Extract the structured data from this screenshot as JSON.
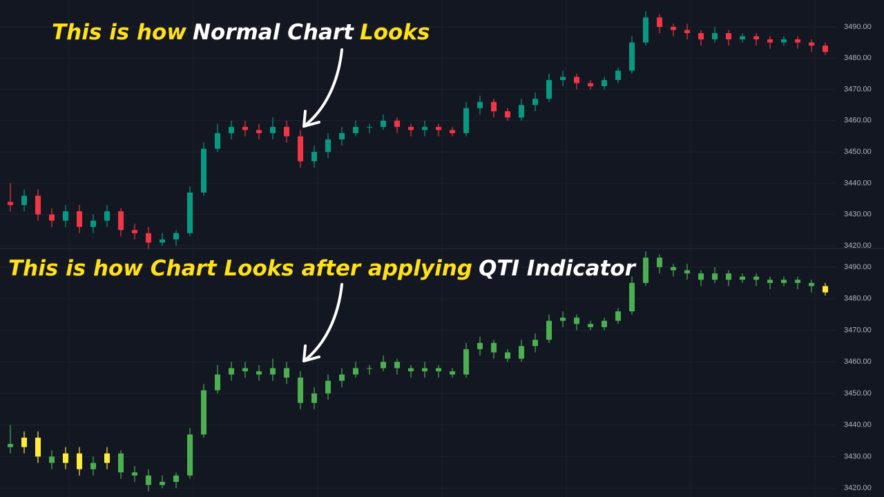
{
  "chart_data": [
    {
      "type": "candlestick",
      "title_parts": [
        {
          "text": "This is how",
          "color": "#ffe01b"
        },
        {
          "text": "Normal Chart",
          "color": "#ffffff"
        },
        {
          "text": "Looks",
          "color": "#ffe01b"
        }
      ],
      "up_color": "#089981",
      "down_color": "#f23645",
      "open": [
        3434,
        3433,
        3436,
        3430,
        3428,
        3431,
        3426,
        3428,
        3431,
        3425,
        3424,
        3421,
        3422,
        3424,
        3437,
        3451,
        3456,
        3458,
        3457,
        3456,
        3458,
        3455,
        3447,
        3450,
        3454,
        3456,
        3458,
        3458,
        3460,
        3458,
        3457,
        3458,
        3457,
        3456,
        3464,
        3466,
        3463,
        3461,
        3465,
        3467,
        3473,
        3474,
        3472,
        3471,
        3473,
        3476,
        3485,
        3493,
        3490,
        3489,
        3488,
        3486,
        3488,
        3486,
        3487,
        3486,
        3485,
        3486,
        3485,
        3484
      ],
      "high": [
        3440,
        3438,
        3438,
        3432,
        3433,
        3433,
        3430,
        3433,
        3432,
        3427,
        3426,
        3424,
        3425,
        3439,
        3453,
        3459,
        3460,
        3460,
        3459,
        3461,
        3460,
        3457,
        3452,
        3456,
        3458,
        3460,
        3459,
        3462,
        3461,
        3459,
        3460,
        3459,
        3458,
        3466,
        3468,
        3467,
        3464,
        3467,
        3469,
        3475,
        3476,
        3475,
        3473,
        3474,
        3477,
        3487,
        3495,
        3494,
        3491,
        3491,
        3489,
        3490,
        3489,
        3488,
        3488,
        3487,
        3487,
        3487,
        3486,
        3485
      ],
      "low": [
        3431,
        3431,
        3428,
        3426,
        3426,
        3424,
        3424,
        3426,
        3423,
        3422,
        3419,
        3420,
        3420,
        3423,
        3436,
        3450,
        3454,
        3455,
        3454,
        3454,
        3453,
        3445,
        3445,
        3448,
        3452,
        3455,
        3456,
        3457,
        3456,
        3455,
        3455,
        3455,
        3455,
        3455,
        3462,
        3461,
        3460,
        3460,
        3463,
        3466,
        3471,
        3470,
        3470,
        3470,
        3472,
        3475,
        3484,
        3488,
        3487,
        3486,
        3484,
        3485,
        3484,
        3485,
        3484,
        3483,
        3484,
        3483,
        3482,
        3481
      ],
      "close": [
        3433,
        3436,
        3430,
        3428,
        3431,
        3426,
        3428,
        3431,
        3425,
        3424,
        3421,
        3422,
        3424,
        3437,
        3451,
        3456,
        3458,
        3457,
        3456,
        3458,
        3455,
        3447,
        3450,
        3454,
        3456,
        3458,
        3458,
        3460,
        3458,
        3457,
        3458,
        3457,
        3456,
        3464,
        3466,
        3463,
        3461,
        3465,
        3467,
        3473,
        3474,
        3472,
        3471,
        3473,
        3476,
        3485,
        3493,
        3490,
        3489,
        3488,
        3486,
        3488,
        3486,
        3487,
        3486,
        3485,
        3486,
        3485,
        3484,
        3482
      ],
      "ylim": [
        3419.1,
        3498.6
      ],
      "yticks": [
        {
          "value": 3420,
          "label": "3420.00"
        },
        {
          "value": 3430,
          "label": "3430.00"
        },
        {
          "value": 3440,
          "label": "3440.00"
        },
        {
          "value": 3450,
          "label": "3450.00"
        },
        {
          "value": 3460,
          "label": "3460.00"
        },
        {
          "value": 3470,
          "label": "3470.00"
        },
        {
          "value": 3480,
          "label": "3480.00"
        },
        {
          "value": 3490,
          "label": "3490.00"
        }
      ],
      "grid": true
    },
    {
      "type": "candlestick",
      "title_parts": [
        {
          "text": "This is how Chart Looks after applying",
          "color": "#ffe01b"
        },
        {
          "text": "QTI Indicator",
          "color": "#ffffff"
        }
      ],
      "colors": [
        "#4caf50",
        "#ffeb3b",
        "#ffeb3b",
        "#4caf50",
        "#ffeb3b",
        "#ffeb3b",
        "#4caf50",
        "#ffeb3b",
        "#4caf50",
        "#4caf50",
        "#4caf50",
        "#4caf50",
        "#4caf50",
        "#4caf50",
        "#4caf50",
        "#4caf50",
        "#4caf50",
        "#4caf50",
        "#4caf50",
        "#4caf50",
        "#4caf50",
        "#4caf50",
        "#4caf50",
        "#4caf50",
        "#4caf50",
        "#4caf50",
        "#4caf50",
        "#4caf50",
        "#4caf50",
        "#4caf50",
        "#4caf50",
        "#4caf50",
        "#4caf50",
        "#4caf50",
        "#4caf50",
        "#4caf50",
        "#4caf50",
        "#4caf50",
        "#4caf50",
        "#4caf50",
        "#4caf50",
        "#4caf50",
        "#4caf50",
        "#4caf50",
        "#4caf50",
        "#4caf50",
        "#4caf50",
        "#4caf50",
        "#4caf50",
        "#4caf50",
        "#4caf50",
        "#4caf50",
        "#4caf50",
        "#4caf50",
        "#4caf50",
        "#4caf50",
        "#4caf50",
        "#4caf50",
        "#4caf50",
        "#ffeb3b"
      ],
      "open": [
        3434,
        3433,
        3436,
        3430,
        3428,
        3431,
        3426,
        3428,
        3431,
        3425,
        3424,
        3421,
        3422,
        3424,
        3437,
        3451,
        3456,
        3458,
        3457,
        3456,
        3458,
        3455,
        3447,
        3450,
        3454,
        3456,
        3458,
        3458,
        3460,
        3458,
        3457,
        3458,
        3457,
        3456,
        3464,
        3466,
        3463,
        3461,
        3465,
        3467,
        3473,
        3474,
        3472,
        3471,
        3473,
        3476,
        3485,
        3493,
        3490,
        3489,
        3488,
        3486,
        3488,
        3486,
        3487,
        3486,
        3485,
        3486,
        3485,
        3484
      ],
      "high": [
        3440,
        3438,
        3438,
        3432,
        3433,
        3433,
        3430,
        3433,
        3432,
        3427,
        3426,
        3424,
        3425,
        3439,
        3453,
        3459,
        3460,
        3460,
        3459,
        3461,
        3460,
        3457,
        3452,
        3456,
        3458,
        3460,
        3459,
        3462,
        3461,
        3459,
        3460,
        3459,
        3458,
        3466,
        3468,
        3467,
        3464,
        3467,
        3469,
        3475,
        3476,
        3475,
        3473,
        3474,
        3477,
        3487,
        3495,
        3494,
        3491,
        3491,
        3489,
        3490,
        3489,
        3488,
        3488,
        3487,
        3487,
        3487,
        3486,
        3485
      ],
      "low": [
        3431,
        3431,
        3428,
        3426,
        3426,
        3424,
        3424,
        3426,
        3423,
        3422,
        3419,
        3420,
        3420,
        3423,
        3436,
        3450,
        3454,
        3455,
        3454,
        3454,
        3453,
        3445,
        3445,
        3448,
        3452,
        3455,
        3456,
        3457,
        3456,
        3455,
        3455,
        3455,
        3455,
        3455,
        3462,
        3461,
        3460,
        3460,
        3463,
        3466,
        3471,
        3470,
        3470,
        3470,
        3472,
        3475,
        3484,
        3488,
        3487,
        3486,
        3484,
        3485,
        3484,
        3485,
        3484,
        3483,
        3484,
        3483,
        3482,
        3481
      ],
      "close": [
        3433,
        3436,
        3430,
        3428,
        3431,
        3426,
        3428,
        3431,
        3425,
        3424,
        3421,
        3422,
        3424,
        3437,
        3451,
        3456,
        3458,
        3457,
        3456,
        3458,
        3455,
        3447,
        3450,
        3454,
        3456,
        3458,
        3458,
        3460,
        3458,
        3457,
        3458,
        3457,
        3456,
        3464,
        3466,
        3463,
        3461,
        3465,
        3467,
        3473,
        3474,
        3472,
        3471,
        3473,
        3476,
        3485,
        3493,
        3490,
        3489,
        3488,
        3486,
        3488,
        3486,
        3487,
        3486,
        3485,
        3486,
        3485,
        3484,
        3482
      ],
      "ylim": [
        3417.2,
        3495.9
      ],
      "yticks": [
        {
          "value": 3420,
          "label": "3420.00"
        },
        {
          "value": 3430,
          "label": "3430.00"
        },
        {
          "value": 3440,
          "label": "3440.00"
        },
        {
          "value": 3450,
          "label": "3450.00"
        },
        {
          "value": 3460,
          "label": "3460.00"
        },
        {
          "value": 3470,
          "label": "3470.00"
        },
        {
          "value": 3480,
          "label": "3480.00"
        },
        {
          "value": 3490,
          "label": "3490.00"
        }
      ],
      "grid": true
    }
  ]
}
